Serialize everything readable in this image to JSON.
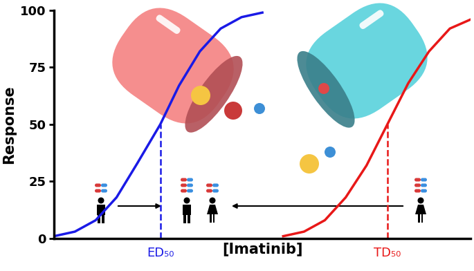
{
  "chart_data": {
    "type": "line",
    "xlabel": "[Imatinib]",
    "ylabel": "Response",
    "xlim": [
      0,
      100
    ],
    "ylim": [
      0,
      100
    ],
    "yticks": [
      0,
      25,
      50,
      75,
      100
    ],
    "tick_labels": "y",
    "series": [
      {
        "color": "#1a1ae6",
        "x": [
          0,
          5,
          10,
          15,
          20,
          25.5,
          30,
          35,
          40,
          45,
          50
        ],
        "values": [
          1,
          3,
          8,
          18,
          33,
          50,
          67,
          82,
          92,
          97,
          99
        ]
      },
      {
        "color": "#e81818",
        "x": [
          55,
          60,
          65,
          70,
          75,
          80,
          85,
          90,
          95,
          100
        ],
        "values": [
          1,
          3,
          8,
          18,
          32,
          50,
          68,
          82,
          92,
          96
        ]
      }
    ],
    "annotations": [
      {
        "text": "ED₅₀",
        "x": 25.5,
        "y": 50,
        "color": "#1a1ae6",
        "line_style": "dashed"
      },
      {
        "text": "TD₅₀",
        "x": 80,
        "y": 50,
        "color": "#e81818",
        "line_style": "dashed"
      }
    ]
  }
}
